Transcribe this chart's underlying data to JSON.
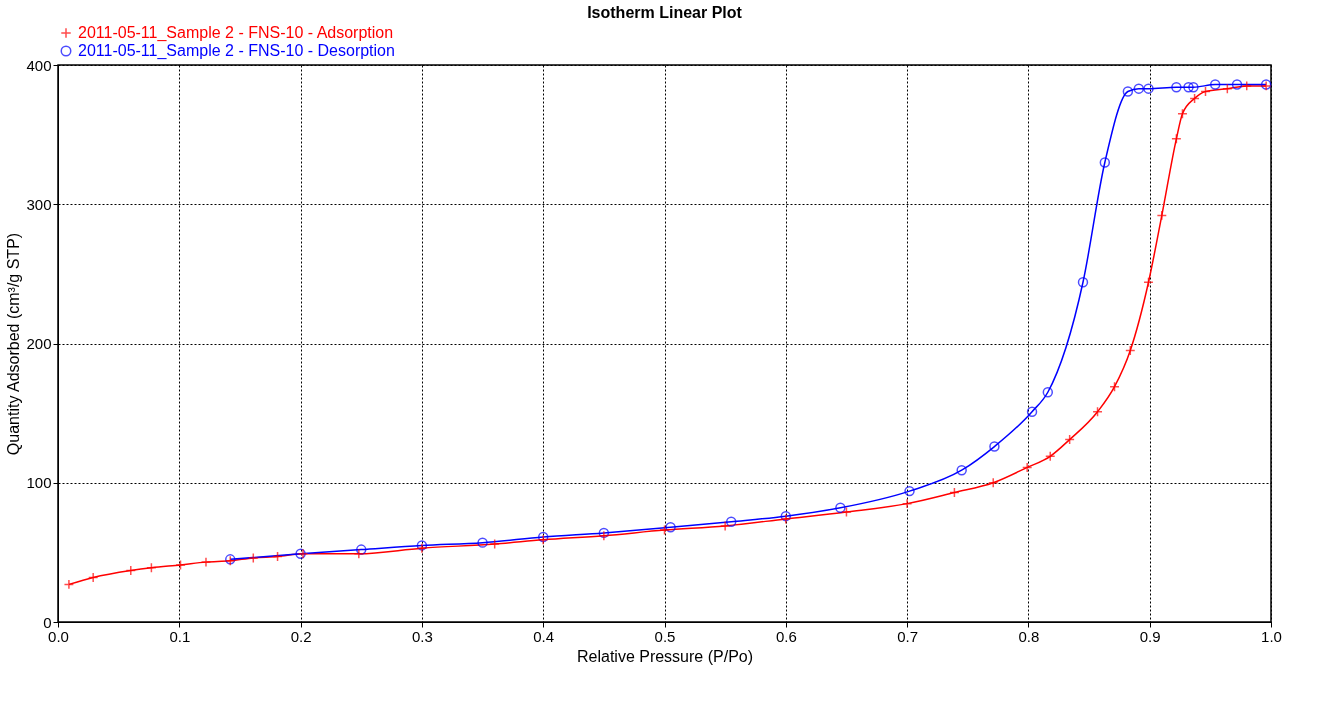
{
  "chart_data": {
    "type": "line",
    "title": "Isotherm Linear Plot",
    "xlabel": "Relative Pressure (P/Po)",
    "ylabel": "Quantity Adsorbed (cm³/g STP)",
    "xlim": [
      0,
      1
    ],
    "ylim": [
      0,
      400
    ],
    "xticks": [
      {
        "value": 0,
        "label": "0.0"
      },
      0.1,
      0.2,
      0.3,
      0.4,
      0.5,
      0.6,
      0.7,
      0.8,
      0.9,
      {
        "value": 1,
        "label": "1.0"
      }
    ],
    "yticks": [
      0,
      100,
      200,
      300,
      400
    ],
    "grid": true,
    "legend": "top left",
    "line_style": "solid",
    "series": [
      {
        "name": "2011-05-11_Sample 2 - FNS-10 - Adsorption",
        "color": "#ff0000",
        "marker": "cross",
        "x": [
          0.009,
          0.029,
          0.06,
          0.077,
          0.101,
          0.122,
          0.142,
          0.161,
          0.181,
          0.202,
          0.248,
          0.3,
          0.36,
          0.4,
          0.45,
          0.5,
          0.55,
          0.6,
          0.65,
          0.7,
          0.739,
          0.771,
          0.799,
          0.818,
          0.834,
          0.857,
          0.871,
          0.884,
          0.899,
          0.91,
          0.922,
          0.927,
          0.937,
          0.946,
          0.964,
          0.98,
          0.996
        ],
        "values": [
          27,
          32,
          37,
          39,
          41,
          43,
          44,
          46,
          47,
          49,
          49,
          53,
          56,
          59,
          62,
          66,
          69,
          74,
          79,
          85,
          93,
          100,
          111,
          119,
          131,
          151,
          169,
          195,
          244,
          292,
          347,
          365,
          376,
          381,
          383,
          385,
          385
        ]
      },
      {
        "name": "2011-05-11_Sample 2 - FNS-10 - Desorption",
        "color": "#0000ff",
        "marker": "circle",
        "x": [
          0.142,
          0.2,
          0.25,
          0.3,
          0.35,
          0.4,
          0.45,
          0.505,
          0.555,
          0.6,
          0.645,
          0.702,
          0.745,
          0.772,
          0.803,
          0.816,
          0.845,
          0.863,
          0.882,
          0.891,
          0.899,
          0.922,
          0.932,
          0.936,
          0.954,
          0.972,
          0.996
        ],
        "values": [
          45,
          49,
          52,
          55,
          57,
          61,
          64,
          68,
          72,
          76,
          82,
          94,
          109,
          126,
          151,
          165,
          244,
          330,
          381,
          383,
          383,
          384,
          384,
          384,
          386,
          386,
          386
        ]
      }
    ]
  }
}
